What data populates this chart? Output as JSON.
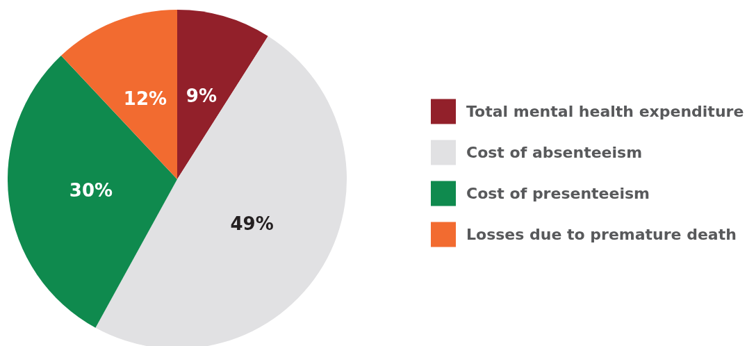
{
  "chart_data": {
    "type": "pie",
    "categories": [
      "Total mental health expenditure",
      "Cost of absenteeism",
      "Cost of presenteeism",
      "Losses due to premature death"
    ],
    "values": [
      9,
      49,
      30,
      12
    ],
    "colors": [
      "#92202a",
      "#e1e1e3",
      "#0f8a4e",
      "#f26b30"
    ],
    "value_labels": [
      "9%",
      "49%",
      "30%",
      "12%"
    ],
    "legend": "right"
  }
}
